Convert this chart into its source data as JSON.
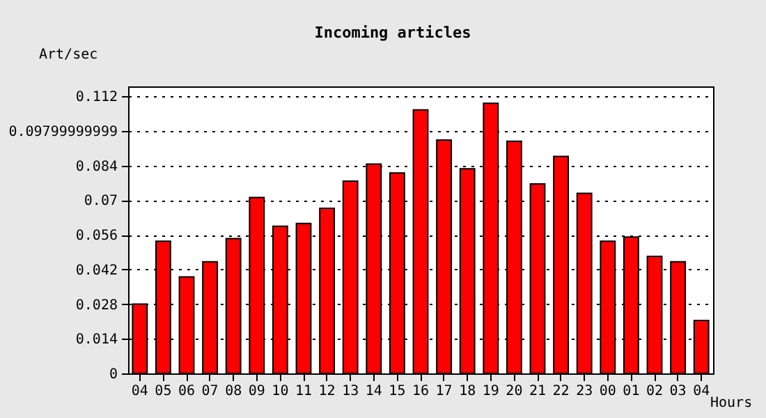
{
  "chart_data": {
    "type": "bar",
    "title": "Incoming articles",
    "ylabel": "Art/sec",
    "xlabel": "Hours",
    "categories": [
      "04",
      "05",
      "06",
      "07",
      "08",
      "09",
      "10",
      "11",
      "12",
      "13",
      "14",
      "15",
      "16",
      "17",
      "18",
      "19",
      "20",
      "21",
      "22",
      "23",
      "00",
      "01",
      "02",
      "03",
      "04"
    ],
    "values": [
      0.028,
      0.0534,
      0.039,
      0.0451,
      0.0545,
      0.0711,
      0.0595,
      0.0606,
      0.0667,
      0.0777,
      0.0846,
      0.081,
      0.1065,
      0.0943,
      0.0827,
      0.1092,
      0.0938,
      0.0766,
      0.0877,
      0.0728,
      0.0534,
      0.0551,
      0.0473,
      0.0451,
      0.0214
    ],
    "color": "#ff0000",
    "ylim": [
      0,
      0.116
    ],
    "yticks": [
      0,
      0.014,
      0.028,
      0.042,
      0.056,
      0.07,
      0.084,
      {
        "value": 0.09799999999,
        "label": "0.09799999999"
      },
      0.112
    ],
    "grid": "y"
  }
}
